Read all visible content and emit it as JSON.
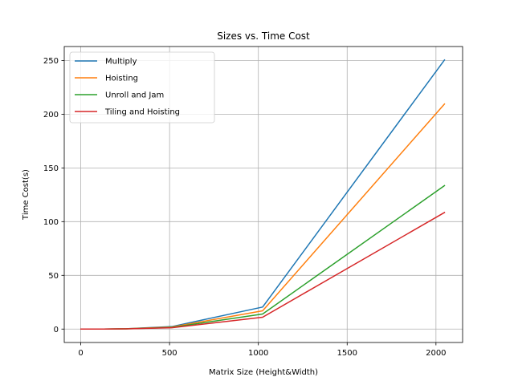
{
  "chart_data": {
    "type": "line",
    "title": "Sizes vs. Time Cost",
    "xlabel": "Matrix Size (Height&Width)",
    "ylabel": "Time Cost(s)",
    "xlim": [
      -93,
      2150
    ],
    "ylim": [
      -12.5,
      263
    ],
    "x": [
      1,
      16,
      32,
      64,
      128,
      256,
      512,
      1024,
      2048
    ],
    "xticks": [
      0,
      500,
      1000,
      1500,
      2000
    ],
    "xtick_labels": [
      "0",
      "500",
      "1000",
      "1500",
      "2000"
    ],
    "yticks": [
      0,
      50,
      100,
      150,
      200,
      250
    ],
    "ytick_labels": [
      "0",
      "50",
      "100",
      "150",
      "200",
      "250"
    ],
    "grid": true,
    "legend_position": "upper-left",
    "series": [
      {
        "name": "Multiply",
        "color": "#1f77b4",
        "values": [
          0,
          0,
          0,
          0,
          0.02,
          0.3,
          2.3,
          20.5,
          250.5
        ]
      },
      {
        "name": "Hoisting",
        "color": "#ff7f0e",
        "values": [
          0,
          0,
          0,
          0,
          0.02,
          0.25,
          1.9,
          17,
          209.5
        ]
      },
      {
        "name": "Unroll and Jam",
        "color": "#2ca02c",
        "values": [
          0,
          0,
          0,
          0,
          0.01,
          0.2,
          1.5,
          14,
          133.5
        ]
      },
      {
        "name": "Tiling and Hoisting",
        "color": "#d62728",
        "values": [
          0,
          0,
          0,
          0,
          0.01,
          0.15,
          1.2,
          11,
          108.5
        ]
      }
    ]
  }
}
